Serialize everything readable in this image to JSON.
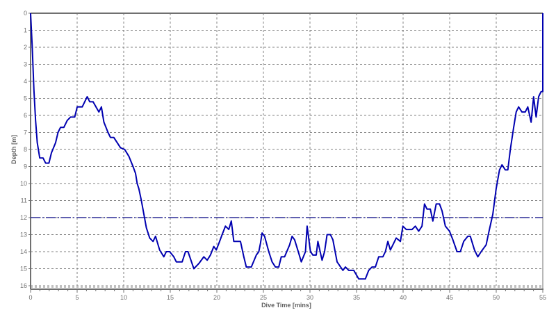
{
  "chart_data": {
    "type": "line",
    "title": "",
    "xlabel": "Dive Time [mins]",
    "ylabel": "Depth [m]",
    "xlim": [
      0,
      55
    ],
    "ylim": [
      16,
      0
    ],
    "y_inverted": true,
    "grid": true,
    "x_ticks": [
      0,
      5,
      10,
      15,
      20,
      25,
      30,
      35,
      40,
      45,
      50,
      55
    ],
    "y_ticks": [
      0,
      1,
      2,
      3,
      4,
      5,
      6,
      7,
      8,
      9,
      10,
      11,
      12,
      13,
      14,
      15,
      16
    ],
    "reference_line": {
      "depth": 12,
      "style": "dash-dot",
      "color": "#000080"
    },
    "series": [
      {
        "name": "Depth profile",
        "color": "#0000b0",
        "points": [
          [
            0.0,
            0.0
          ],
          [
            0.2,
            2.0
          ],
          [
            0.4,
            4.5
          ],
          [
            0.6,
            6.3
          ],
          [
            0.8,
            7.6
          ],
          [
            1.1,
            8.5
          ],
          [
            1.5,
            8.5
          ],
          [
            1.8,
            8.8
          ],
          [
            2.2,
            8.8
          ],
          [
            2.5,
            8.2
          ],
          [
            3.0,
            7.6
          ],
          [
            3.3,
            7.0
          ],
          [
            3.6,
            6.7
          ],
          [
            4.0,
            6.7
          ],
          [
            4.4,
            6.3
          ],
          [
            4.8,
            6.1
          ],
          [
            5.3,
            6.1
          ],
          [
            5.6,
            5.5
          ],
          [
            6.2,
            5.5
          ],
          [
            6.5,
            5.2
          ],
          [
            6.8,
            4.9
          ],
          [
            7.1,
            5.2
          ],
          [
            7.5,
            5.2
          ],
          [
            8.2,
            5.8
          ],
          [
            8.5,
            5.5
          ],
          [
            8.8,
            6.4
          ],
          [
            9.3,
            7.0
          ],
          [
            9.6,
            7.3
          ],
          [
            10.0,
            7.3
          ],
          [
            10.4,
            7.6
          ],
          [
            10.8,
            7.9
          ],
          [
            11.3,
            8.0
          ],
          [
            11.8,
            8.4
          ],
          [
            12.3,
            9.0
          ],
          [
            12.6,
            9.4
          ],
          [
            12.8,
            10.0
          ],
          [
            13.0,
            10.3
          ],
          [
            13.3,
            11.0
          ],
          [
            13.6,
            11.8
          ],
          [
            13.9,
            12.6
          ],
          [
            14.3,
            13.2
          ],
          [
            14.7,
            13.4
          ],
          [
            15.0,
            13.1
          ],
          [
            15.5,
            13.9
          ],
          [
            16.0,
            14.3
          ],
          [
            16.3,
            14.0
          ],
          [
            16.7,
            14.0
          ],
          [
            17.2,
            14.3
          ],
          [
            17.5,
            14.6
          ],
          [
            18.2,
            14.6
          ],
          [
            18.6,
            14.0
          ],
          [
            18.9,
            14.0
          ],
          [
            19.6,
            15.0
          ],
          [
            20.2,
            14.7
          ],
          [
            20.8,
            14.3
          ],
          [
            21.2,
            14.5
          ],
          [
            21.6,
            14.2
          ],
          [
            22.0,
            13.7
          ],
          [
            22.3,
            13.9
          ],
          [
            22.7,
            13.4
          ],
          [
            23.0,
            13.0
          ],
          [
            23.4,
            12.5
          ],
          [
            23.8,
            12.7
          ],
          [
            24.1,
            12.2
          ],
          [
            24.4,
            13.4
          ],
          [
            25.2,
            13.4
          ],
          [
            25.6,
            14.3
          ],
          [
            25.9,
            14.9
          ],
          [
            26.5,
            14.9
          ],
          [
            27.1,
            14.2
          ],
          [
            27.4,
            14.0
          ],
          [
            27.6,
            13.5
          ],
          [
            27.8,
            12.9
          ],
          [
            28.1,
            13.1
          ],
          [
            28.6,
            14.0
          ],
          [
            29.0,
            14.6
          ],
          [
            29.4,
            14.9
          ],
          [
            29.8,
            14.9
          ],
          [
            30.1,
            14.3
          ],
          [
            30.5,
            14.3
          ],
          [
            31.1,
            13.6
          ],
          [
            31.4,
            13.1
          ],
          [
            31.7,
            13.3
          ],
          [
            32.2,
            14.1
          ],
          [
            32.5,
            14.6
          ],
          [
            33.0,
            14.0
          ],
          [
            33.2,
            12.5
          ],
          [
            33.6,
            14.0
          ],
          [
            33.9,
            14.2
          ],
          [
            34.3,
            14.2
          ],
          [
            34.5,
            13.4
          ],
          [
            35.0,
            14.5
          ],
          [
            35.3,
            14.0
          ],
          [
            35.6,
            13.0
          ],
          [
            36.0,
            13.0
          ],
          [
            36.3,
            13.3
          ],
          [
            36.8,
            14.6
          ],
          [
            37.5,
            15.1
          ],
          [
            37.8,
            14.9
          ],
          [
            38.2,
            15.1
          ],
          [
            38.8,
            15.1
          ],
          [
            39.4,
            15.6
          ],
          [
            40.2,
            15.6
          ],
          [
            40.6,
            15.1
          ],
          [
            41.0,
            14.9
          ],
          [
            41.4,
            14.9
          ],
          [
            41.8,
            14.3
          ],
          [
            42.3,
            14.3
          ],
          [
            42.6,
            14.0
          ],
          [
            42.9,
            13.4
          ],
          [
            43.2,
            13.9
          ],
          [
            43.6,
            13.5
          ],
          [
            43.9,
            13.2
          ],
          [
            44.4,
            13.4
          ],
          [
            44.7,
            12.5
          ],
          [
            45.1,
            12.7
          ],
          [
            45.8,
            12.7
          ],
          [
            46.2,
            12.5
          ],
          [
            46.6,
            12.8
          ],
          [
            47.0,
            12.5
          ],
          [
            47.3,
            11.2
          ],
          [
            47.6,
            11.5
          ],
          [
            48.0,
            11.5
          ],
          [
            48.3,
            12.2
          ],
          [
            48.7,
            11.2
          ],
          [
            49.1,
            11.2
          ],
          [
            49.4,
            11.6
          ],
          [
            49.8,
            12.5
          ],
          [
            50.3,
            12.8
          ],
          [
            50.7,
            13.3
          ],
          [
            51.2,
            14.0
          ],
          [
            51.6,
            14.0
          ],
          [
            52.0,
            13.4
          ],
          [
            52.5,
            13.1
          ],
          [
            52.8,
            13.1
          ],
          [
            53.3,
            13.9
          ],
          [
            53.7,
            14.3
          ],
          [
            54.1,
            14.0
          ],
          [
            54.7,
            13.6
          ],
          [
            55.0,
            12.9
          ],
          [
            55.5,
            11.8
          ],
          [
            55.9,
            10.3
          ],
          [
            56.3,
            9.2
          ],
          [
            56.6,
            8.9
          ],
          [
            57.0,
            9.2
          ],
          [
            57.3,
            9.2
          ],
          [
            57.6,
            8.0
          ],
          [
            58.0,
            6.7
          ],
          [
            58.3,
            5.8
          ],
          [
            58.6,
            5.5
          ],
          [
            59.0,
            5.8
          ],
          [
            59.4,
            5.8
          ],
          [
            59.7,
            5.5
          ],
          [
            60.1,
            6.4
          ],
          [
            60.4,
            4.9
          ],
          [
            60.7,
            6.1
          ],
          [
            61.0,
            4.9
          ],
          [
            61.3,
            4.6
          ],
          [
            61.5,
            4.6
          ],
          [
            61.5,
            0.0
          ]
        ]
      }
    ]
  },
  "axes": {
    "x_title": "Dive Time [mins]",
    "y_title": "Depth [m]",
    "x_tick_labels": [
      "0",
      "5",
      "10",
      "15",
      "20",
      "25",
      "30",
      "35",
      "40",
      "45",
      "50",
      "55"
    ],
    "y_tick_labels": [
      "0",
      "1",
      "2",
      "3",
      "4",
      "5",
      "6",
      "7",
      "8",
      "9",
      "10",
      "11",
      "12",
      "13",
      "14",
      "15",
      "16"
    ]
  },
  "colors": {
    "line": "#0000b0",
    "reference": "#000080",
    "grid": "#808080",
    "axis": "#707070",
    "label": "#707070"
  }
}
